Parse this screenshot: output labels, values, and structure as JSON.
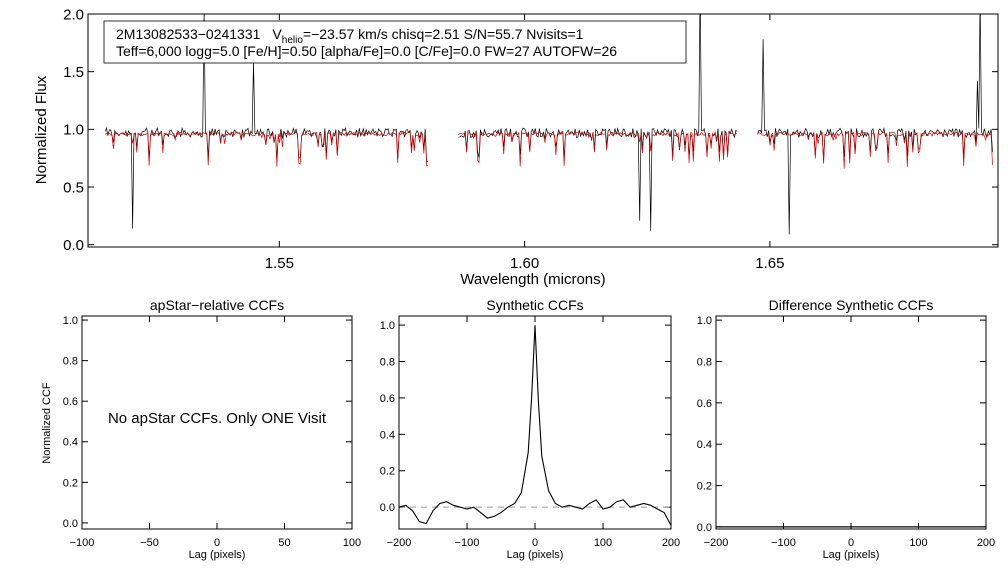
{
  "chart_data": [
    {
      "type": "line",
      "info_line1": {
        "star": "2M13082533−0241331",
        "v_prefix": "V",
        "v_sub": "helio",
        "v_rest": "=−23.57 km/s  chisq=2.51  S/N=55.7  Nvisits=1"
      },
      "info_line2": "Teff=6,000 logg=5.0 [Fe/H]=0.50 [alpha/Fe]=0.0 [C/Fe]=0.0 FW=27 AUTOFW=26",
      "xlabel": "Wavelength (microns)",
      "ylabel": "Normalized Flux",
      "xlim": [
        1.511,
        1.6965
      ],
      "ylim": [
        -0.02,
        2.0
      ],
      "xticks": [
        "1.55",
        "1.60",
        "1.65"
      ],
      "yticks": [
        "0.0",
        "0.5",
        "1.0",
        "1.5",
        "2.0"
      ],
      "chip_ranges": [
        [
          1.5145,
          1.5805
        ],
        [
          1.5865,
          1.6435
        ],
        [
          1.6475,
          1.6955
        ]
      ],
      "series": [
        {
          "color": "#000000",
          "style": "observed",
          "continuum": 0.97
        },
        {
          "color": "#e00000",
          "style": "model",
          "continuum": 0.96
        }
      ]
    },
    {
      "type": "line",
      "title": "apStar−relative CCFs",
      "xlabel": "Lag (pixels)",
      "ylabel": "Normalized CCF",
      "xlim": [
        -100,
        100
      ],
      "ylim": [
        -0.03,
        1.02
      ],
      "xticks": [
        "−100",
        "−50",
        "0",
        "50",
        "100"
      ],
      "yticks": [
        "0.0",
        "0.2",
        "0.4",
        "0.6",
        "0.8",
        "1.0"
      ],
      "note": "No apStar CCFs.  Only ONE Visit"
    },
    {
      "type": "line",
      "title": "Synthetic CCFs",
      "xlabel": "Lag (pixels)",
      "xlim": [
        -200,
        200
      ],
      "ylim": [
        -0.12,
        1.05
      ],
      "xticks": [
        "−200",
        "−100",
        "0",
        "100",
        "200"
      ],
      "yticks": [
        "0.0",
        "0.2",
        "0.4",
        "0.6",
        "0.8",
        "1.0"
      ],
      "zero_line": 0.0,
      "series": [
        {
          "color": "#000000",
          "x": [
            -200,
            -190,
            -180,
            -170,
            -160,
            -150,
            -140,
            -130,
            -120,
            -110,
            -100,
            -90,
            -80,
            -70,
            -60,
            -50,
            -40,
            -30,
            -20,
            -10,
            -5,
            0,
            5,
            10,
            20,
            30,
            40,
            50,
            60,
            70,
            80,
            90,
            100,
            110,
            120,
            130,
            140,
            150,
            160,
            170,
            180,
            190,
            200
          ],
          "y": [
            0.0,
            0.01,
            -0.02,
            -0.08,
            -0.09,
            -0.02,
            0.02,
            0.03,
            0.01,
            0.0,
            -0.01,
            0.0,
            -0.03,
            -0.06,
            -0.05,
            -0.03,
            0.0,
            0.02,
            0.08,
            0.3,
            0.6,
            1.0,
            0.58,
            0.28,
            0.09,
            0.02,
            0.0,
            0.01,
            0.0,
            -0.01,
            0.02,
            0.04,
            -0.01,
            0.0,
            0.03,
            0.04,
            0.0,
            0.01,
            0.02,
            0.01,
            -0.01,
            -0.03,
            -0.1
          ]
        }
      ]
    },
    {
      "type": "line",
      "title": "Difference Synthetic CCFs",
      "xlabel": "Lag (pixels)",
      "xlim": [
        -200,
        200
      ],
      "ylim": [
        -0.01,
        1.02
      ],
      "xticks": [
        "−200",
        "−100",
        "0",
        "100",
        "200"
      ],
      "yticks": [
        "0.0",
        "0.2",
        "0.4",
        "0.6",
        "0.8",
        "1.0"
      ],
      "series": [
        {
          "color": "#000000",
          "x": [
            -200,
            200
          ],
          "y": [
            0.0,
            0.0
          ]
        }
      ]
    }
  ]
}
